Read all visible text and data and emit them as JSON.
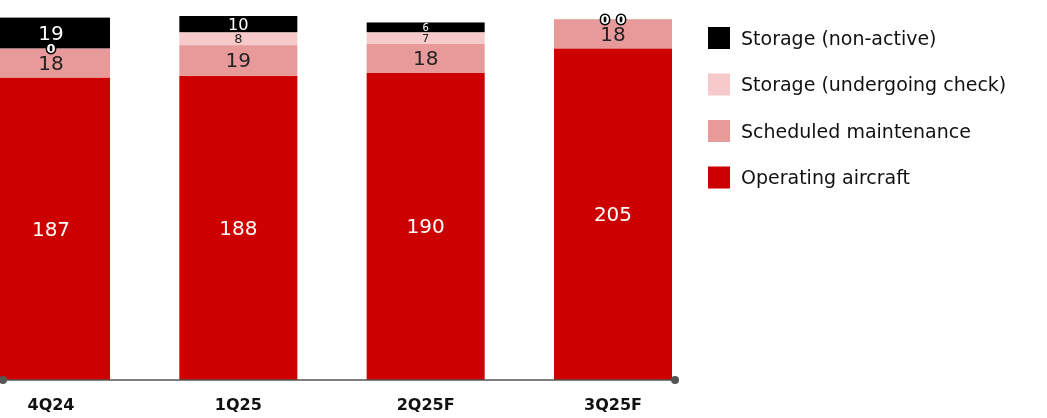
{
  "chart_data": {
    "type": "bar",
    "stacked": true,
    "data_labels": true,
    "legend": "right",
    "grid": false,
    "categories": [
      "4Q24",
      "1Q25",
      "2Q25F",
      "3Q25F"
    ],
    "series": [
      {
        "name": "Operating aircraft",
        "color": "#cc0000",
        "values": [
          187,
          188,
          190,
          205
        ]
      },
      {
        "name": "Scheduled maintenance",
        "color": "#e89a9a",
        "values": [
          18,
          19,
          18,
          18
        ]
      },
      {
        "name": "Storage (undergoing check)",
        "color": "#f6caca",
        "values": [
          0,
          8,
          7,
          0
        ]
      },
      {
        "name": "Storage (non-active)",
        "color": "#000000",
        "values": [
          19,
          10,
          6,
          0
        ]
      }
    ]
  }
}
